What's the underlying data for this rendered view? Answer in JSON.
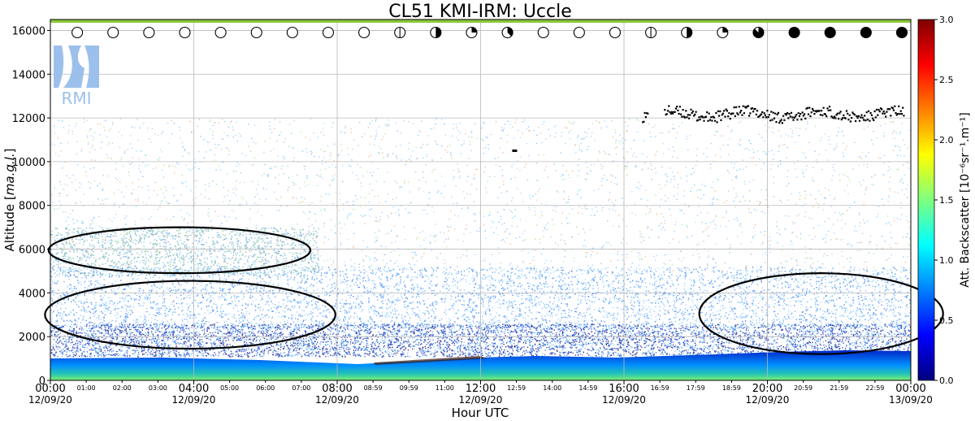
{
  "chart_data": {
    "type": "heatmap",
    "title": "CL51 KMI-IRM: Uccle",
    "xlabel": "Hour UTC",
    "ylabel": "Altitude [ma.g.l.]",
    "ylim": [
      0,
      16500
    ],
    "xlim_hours": [
      0,
      24
    ],
    "grid": true,
    "logo_text": "RMI",
    "major_x_ticks": [
      {
        "hour": 0,
        "time": "00:00",
        "date": "12/09/20"
      },
      {
        "hour": 4,
        "time": "04:00",
        "date": "12/09/20"
      },
      {
        "hour": 8,
        "time": "08:00",
        "date": "12/09/20"
      },
      {
        "hour": 12,
        "time": "12:00",
        "date": "12/09/20"
      },
      {
        "hour": 16,
        "time": "16:00",
        "date": "12/09/20"
      },
      {
        "hour": 20,
        "time": "20:00",
        "date": "12/09/20"
      },
      {
        "hour": 24,
        "time": "00:00",
        "date": "13/09/20"
      }
    ],
    "minor_x_ticks": [
      {
        "hour": 1,
        "label": "01:00"
      },
      {
        "hour": 2,
        "label": "02:00"
      },
      {
        "hour": 3,
        "label": "03:00"
      },
      {
        "hour": 5,
        "label": "05:00"
      },
      {
        "hour": 6,
        "label": "06:00"
      },
      {
        "hour": 7,
        "label": "07:00"
      },
      {
        "hour": 9,
        "label": "08:59"
      },
      {
        "hour": 10,
        "label": "09:59"
      },
      {
        "hour": 11,
        "label": "11:00"
      },
      {
        "hour": 13,
        "label": "12:59"
      },
      {
        "hour": 14,
        "label": "14:00"
      },
      {
        "hour": 15,
        "label": "14:59"
      },
      {
        "hour": 17,
        "label": "16:59"
      },
      {
        "hour": 18,
        "label": "17:59"
      },
      {
        "hour": 19,
        "label": "18:59"
      },
      {
        "hour": 21,
        "label": "20:59"
      },
      {
        "hour": 22,
        "label": "21:59"
      },
      {
        "hour": 23,
        "label": "22:59"
      }
    ],
    "y_ticks": [
      {
        "value": 0,
        "label": "0"
      },
      {
        "value": 2000,
        "label": "2000"
      },
      {
        "value": 4000,
        "label": "4000"
      },
      {
        "value": 6000,
        "label": "6000"
      },
      {
        "value": 8000,
        "label": "8000"
      },
      {
        "value": 10000,
        "label": "10000"
      },
      {
        "value": 12000,
        "label": "12000"
      },
      {
        "value": 14000,
        "label": "14000"
      },
      {
        "value": 16000,
        "label": "16000"
      }
    ],
    "colorbar": {
      "label": "Att. Backscatter [10⁻⁶sr⁻¹.m⁻¹]",
      "range": [
        0.0,
        3.0
      ],
      "ticks": [
        {
          "value": 0.0,
          "label": "0.0"
        },
        {
          "value": 0.5,
          "label": "0.5"
        },
        {
          "value": 1.0,
          "label": "1.0"
        },
        {
          "value": 1.5,
          "label": "1.5"
        },
        {
          "value": 2.0,
          "label": "2.0"
        },
        {
          "value": 2.5,
          "label": "2.5"
        },
        {
          "value": 3.0,
          "label": "3.0"
        }
      ],
      "colors": [
        "#00007f",
        "#0000ff",
        "#007fff",
        "#00ffff",
        "#7fff7f",
        "#ffff00",
        "#ff7f00",
        "#ff0000",
        "#7f0000"
      ]
    },
    "sky_condition_symbols": [
      {
        "hour": 0.75,
        "cover": 0
      },
      {
        "hour": 1.75,
        "cover": 0
      },
      {
        "hour": 2.75,
        "cover": 0
      },
      {
        "hour": 3.75,
        "cover": 0
      },
      {
        "hour": 4.75,
        "cover": 0
      },
      {
        "hour": 5.75,
        "cover": 0
      },
      {
        "hour": 6.75,
        "cover": 0
      },
      {
        "hour": 7.75,
        "cover": 0
      },
      {
        "hour": 8.75,
        "cover": 0
      },
      {
        "hour": 9.75,
        "cover": 1
      },
      {
        "hour": 10.75,
        "cover": 4
      },
      {
        "hour": 11.75,
        "cover": 2
      },
      {
        "hour": 12.75,
        "cover": 3
      },
      {
        "hour": 13.75,
        "cover": 0
      },
      {
        "hour": 14.75,
        "cover": 0
      },
      {
        "hour": 15.75,
        "cover": 0
      },
      {
        "hour": 16.75,
        "cover": 1
      },
      {
        "hour": 17.75,
        "cover": 4
      },
      {
        "hour": 18.75,
        "cover": 2
      },
      {
        "hour": 19.75,
        "cover": 7
      },
      {
        "hour": 20.75,
        "cover": 8
      },
      {
        "hour": 21.75,
        "cover": 8
      },
      {
        "hour": 22.75,
        "cover": 8
      },
      {
        "hour": 23.75,
        "cover": 8
      }
    ],
    "cirrus_cloud_base": {
      "altitude_m": 12200,
      "hour_range": [
        16.5,
        23.8
      ]
    },
    "isolated_cloud": {
      "hour": 12.95,
      "altitude_m": 10500
    },
    "annotation_ellipses": [
      {
        "hour_center": 3.6,
        "alt_center_m": 5950,
        "hour_halfwidth": 3.65,
        "alt_halfheight_m": 1050
      },
      {
        "hour_center": 3.9,
        "alt_center_m": 3000,
        "hour_halfwidth": 4.05,
        "alt_halfheight_m": 1550
      },
      {
        "hour_center": 21.5,
        "alt_center_m": 3050,
        "hour_halfwidth": 3.4,
        "alt_halfheight_m": 1850
      }
    ]
  }
}
